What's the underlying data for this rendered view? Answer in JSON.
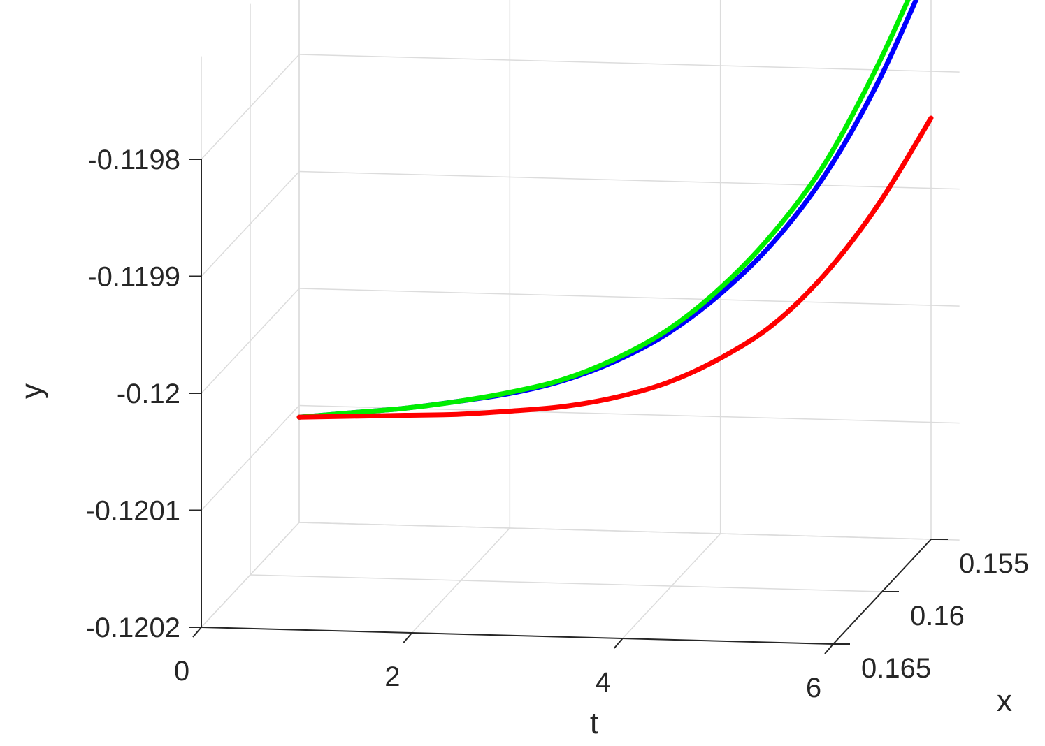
{
  "chart_data": {
    "type": "line",
    "view": "3d",
    "xlabel": "t",
    "ylabel": "y",
    "zlabel": "x",
    "t_ticks": [
      "0",
      "2",
      "4",
      "6"
    ],
    "y_ticks": [
      "-0.1202",
      "-0.1201",
      "-0.12",
      "-0.1199",
      "-0.1198"
    ],
    "x_ticks": [
      "0.155",
      "0.16",
      "0.165"
    ],
    "tlim": [
      0,
      6
    ],
    "ylim": [
      -0.1202,
      -0.1198
    ],
    "xlim": [
      0.155,
      0.165
    ],
    "grid": true,
    "series": [
      {
        "color": "#0000ff",
        "t": [
          0,
          0.5,
          1,
          1.5,
          2,
          2.5,
          3,
          3.5,
          4,
          4.5,
          5,
          5.5,
          6
        ],
        "y": [
          -0.12011,
          -0.120105,
          -0.1201,
          -0.120093,
          -0.120085,
          -0.120073,
          -0.120055,
          -0.12003,
          -0.119995,
          -0.11995,
          -0.11989,
          -0.11981,
          -0.11971
        ],
        "x": [
          0.155,
          0.155,
          0.155,
          0.155,
          0.155,
          0.155,
          0.155,
          0.155,
          0.155,
          0.155,
          0.155,
          0.155,
          0.155
        ]
      },
      {
        "color": "#00ee00",
        "t": [
          0,
          0.5,
          1,
          1.5,
          2,
          2.5,
          3,
          3.5,
          4,
          4.5,
          5,
          5.5,
          6
        ],
        "y": [
          -0.12011,
          -0.120105,
          -0.1201,
          -0.120093,
          -0.120084,
          -0.120072,
          -0.120053,
          -0.120027,
          -0.11999,
          -0.119942,
          -0.11988,
          -0.119795,
          -0.119695
        ],
        "x": [
          0.155,
          0.155,
          0.155,
          0.155,
          0.155,
          0.155,
          0.155,
          0.155,
          0.155,
          0.155,
          0.155,
          0.155,
          0.155
        ]
      },
      {
        "color": "#ff0000",
        "t": [
          0,
          0.5,
          1,
          1.5,
          2,
          2.5,
          3,
          3.5,
          4,
          4.5,
          5,
          5.5,
          6
        ],
        "y": [
          -0.12011,
          -0.120108,
          -0.120106,
          -0.120104,
          -0.1201,
          -0.120095,
          -0.120086,
          -0.120072,
          -0.12005,
          -0.12002,
          -0.119975,
          -0.119915,
          -0.11984
        ],
        "x": [
          0.155,
          0.155,
          0.155,
          0.155,
          0.155,
          0.155,
          0.155,
          0.155,
          0.155,
          0.155,
          0.155,
          0.155,
          0.155
        ]
      }
    ],
    "colors": {
      "grid": "#dcdcdc",
      "axis": "#262626"
    }
  }
}
